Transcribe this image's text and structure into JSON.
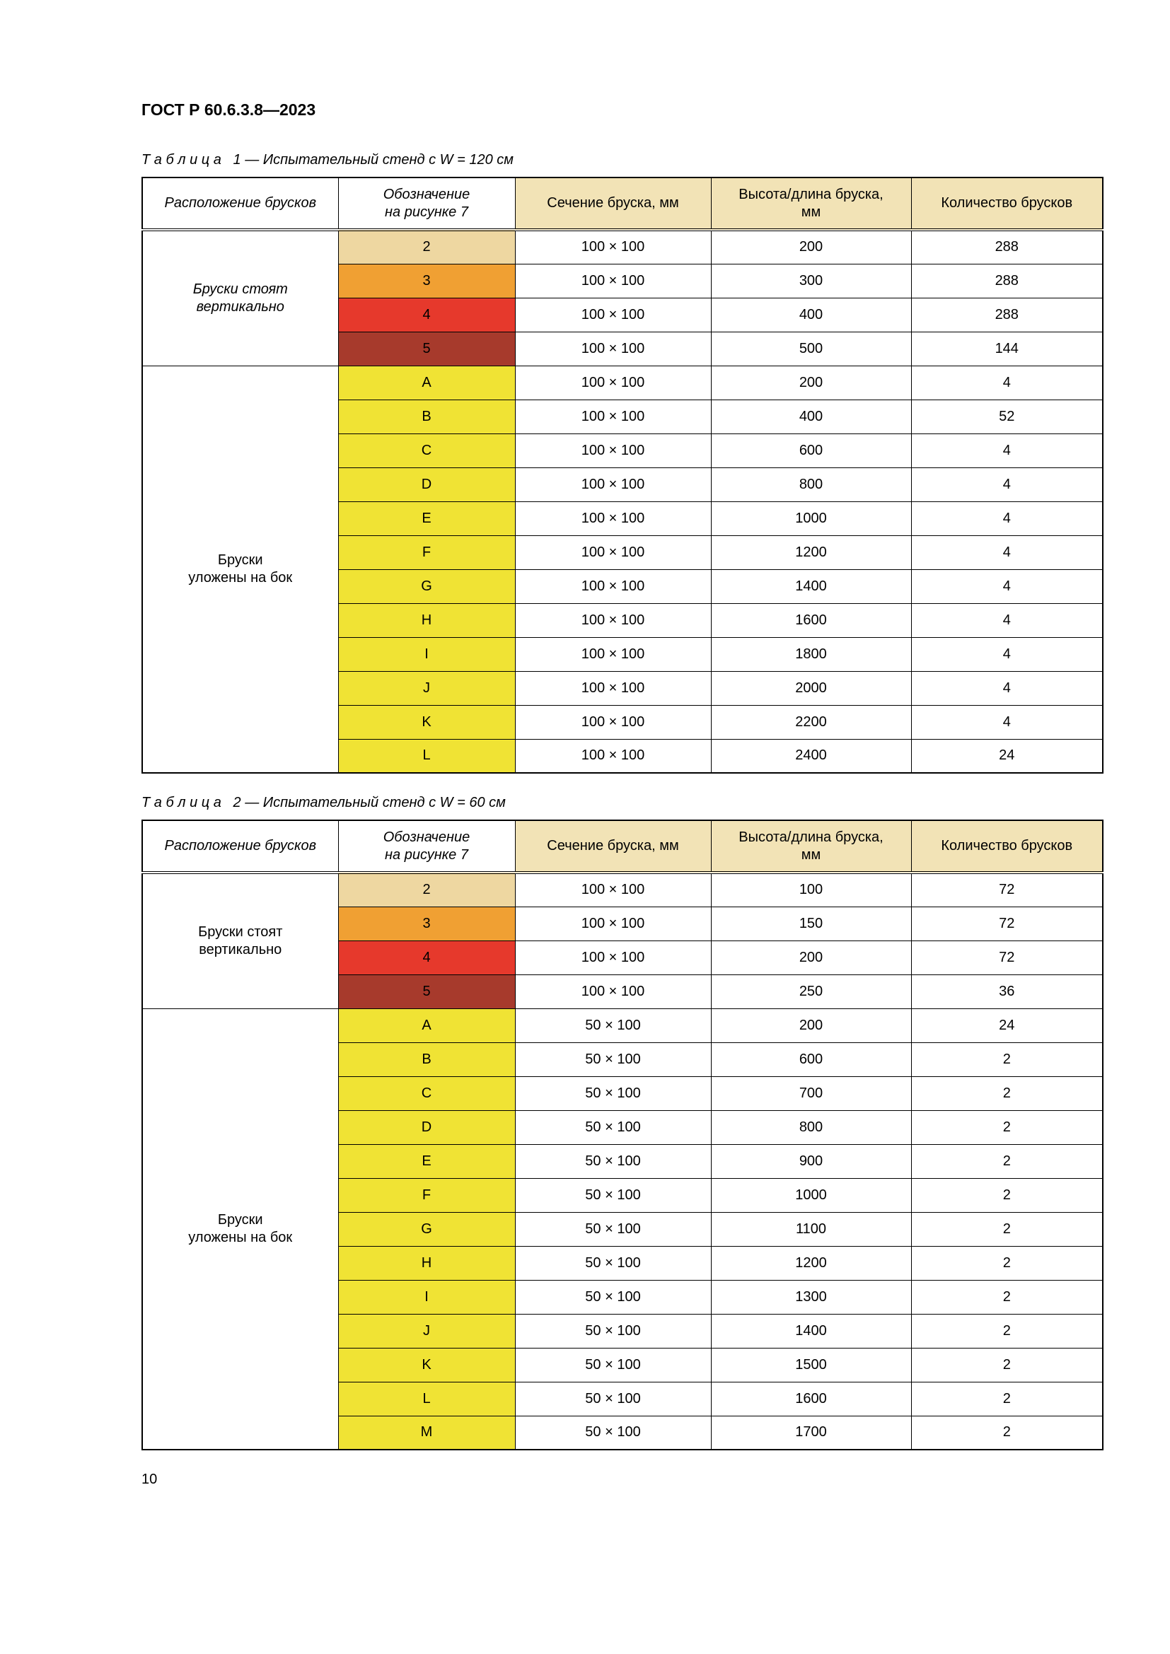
{
  "page": {
    "doc_header": "ГОСТ Р 60.6.3.8—2023",
    "page_number": "10"
  },
  "colors": {
    "header_shade": "#f2e3b6",
    "tan": "#eed7a1",
    "orange": "#f0a033",
    "red": "#e6392c",
    "dark_red": "#a73a2c",
    "yellow": "#f0e334"
  },
  "tables": [
    {
      "caption": "Т а б л и ц а   1 — Испытательный стенд с W = 120 см",
      "headers": [
        {
          "text": "Расположение брусков",
          "italic": true,
          "shaded": false
        },
        {
          "text": "Обозначение\nна рисунке 7",
          "italic": true,
          "shaded": false
        },
        {
          "text": "Сечение бруска, мм",
          "italic": false,
          "shaded": true
        },
        {
          "text": "Высота/длина бруска,\nмм",
          "italic": false,
          "shaded": true
        },
        {
          "text": "Количество брусков",
          "italic": false,
          "shaded": true
        }
      ],
      "groups": [
        {
          "label": "Бруски стоят\nвертикально",
          "italic": true,
          "rows": [
            {
              "designation": "2",
              "color": "tan",
              "section": "100 × 100",
              "height": "200",
              "count": "288"
            },
            {
              "designation": "3",
              "color": "orange",
              "section": "100 × 100",
              "height": "300",
              "count": "288"
            },
            {
              "designation": "4",
              "color": "red",
              "section": "100 × 100",
              "height": "400",
              "count": "288"
            },
            {
              "designation": "5",
              "color": "dark_red",
              "section": "100 × 100",
              "height": "500",
              "count": "144"
            }
          ]
        },
        {
          "label": "Бруски\nуложены на бок",
          "italic": false,
          "rows": [
            {
              "designation": "A",
              "color": "yellow",
              "section": "100 × 100",
              "height": "200",
              "count": "4"
            },
            {
              "designation": "B",
              "color": "yellow",
              "section": "100 × 100",
              "height": "400",
              "count": "52"
            },
            {
              "designation": "C",
              "color": "yellow",
              "section": "100 × 100",
              "height": "600",
              "count": "4"
            },
            {
              "designation": "D",
              "color": "yellow",
              "section": "100 × 100",
              "height": "800",
              "count": "4"
            },
            {
              "designation": "E",
              "color": "yellow",
              "section": "100 × 100",
              "height": "1000",
              "count": "4"
            },
            {
              "designation": "F",
              "color": "yellow",
              "section": "100 × 100",
              "height": "1200",
              "count": "4"
            },
            {
              "designation": "G",
              "color": "yellow",
              "section": "100 × 100",
              "height": "1400",
              "count": "4"
            },
            {
              "designation": "H",
              "color": "yellow",
              "section": "100 × 100",
              "height": "1600",
              "count": "4"
            },
            {
              "designation": "I",
              "color": "yellow",
              "section": "100 × 100",
              "height": "1800",
              "count": "4"
            },
            {
              "designation": "J",
              "color": "yellow",
              "section": "100 × 100",
              "height": "2000",
              "count": "4"
            },
            {
              "designation": "K",
              "color": "yellow",
              "section": "100 × 100",
              "height": "2200",
              "count": "4"
            },
            {
              "designation": "L",
              "color": "yellow",
              "section": "100 × 100",
              "height": "2400",
              "count": "24"
            }
          ]
        }
      ]
    },
    {
      "caption": "Т а б л и ц а   2 — Испытательный стенд с W = 60 см",
      "headers": [
        {
          "text": "Расположение брусков",
          "italic": true,
          "shaded": false
        },
        {
          "text": "Обозначение\nна рисунке 7",
          "italic": true,
          "shaded": false
        },
        {
          "text": "Сечение бруска, мм",
          "italic": false,
          "shaded": true
        },
        {
          "text": "Высота/длина бруска,\nмм",
          "italic": false,
          "shaded": true
        },
        {
          "text": "Количество брусков",
          "italic": false,
          "shaded": true
        }
      ],
      "groups": [
        {
          "label": "Бруски стоят\nвертикально",
          "italic": false,
          "rows": [
            {
              "designation": "2",
              "color": "tan",
              "section": "100 × 100",
              "height": "100",
              "count": "72"
            },
            {
              "designation": "3",
              "color": "orange",
              "section": "100 × 100",
              "height": "150",
              "count": "72"
            },
            {
              "designation": "4",
              "color": "red",
              "section": "100 × 100",
              "height": "200",
              "count": "72"
            },
            {
              "designation": "5",
              "color": "dark_red",
              "section": "100 × 100",
              "height": "250",
              "count": "36"
            }
          ]
        },
        {
          "label": "Бруски\nуложены на бок",
          "italic": false,
          "rows": [
            {
              "designation": "A",
              "color": "yellow",
              "section": "50 × 100",
              "height": "200",
              "count": "24"
            },
            {
              "designation": "B",
              "color": "yellow",
              "section": "50 × 100",
              "height": "600",
              "count": "2"
            },
            {
              "designation": "C",
              "color": "yellow",
              "section": "50 × 100",
              "height": "700",
              "count": "2"
            },
            {
              "designation": "D",
              "color": "yellow",
              "section": "50 × 100",
              "height": "800",
              "count": "2"
            },
            {
              "designation": "E",
              "color": "yellow",
              "section": "50 × 100",
              "height": "900",
              "count": "2"
            },
            {
              "designation": "F",
              "color": "yellow",
              "section": "50 × 100",
              "height": "1000",
              "count": "2"
            },
            {
              "designation": "G",
              "color": "yellow",
              "section": "50 × 100",
              "height": "1100",
              "count": "2"
            },
            {
              "designation": "H",
              "color": "yellow",
              "section": "50 × 100",
              "height": "1200",
              "count": "2"
            },
            {
              "designation": "I",
              "color": "yellow",
              "section": "50 × 100",
              "height": "1300",
              "count": "2"
            },
            {
              "designation": "J",
              "color": "yellow",
              "section": "50 × 100",
              "height": "1400",
              "count": "2"
            },
            {
              "designation": "K",
              "color": "yellow",
              "section": "50 × 100",
              "height": "1500",
              "count": "2"
            },
            {
              "designation": "L",
              "color": "yellow",
              "section": "50 × 100",
              "height": "1600",
              "count": "2"
            },
            {
              "designation": "M",
              "color": "yellow",
              "section": "50 × 100",
              "height": "1700",
              "count": "2"
            }
          ]
        }
      ]
    }
  ]
}
